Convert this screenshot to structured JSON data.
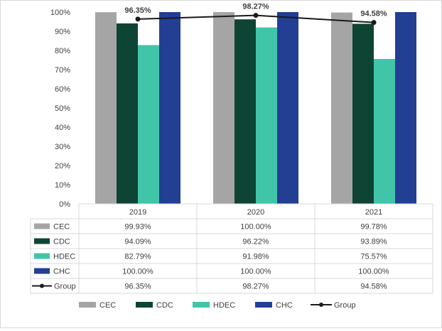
{
  "chart_data": {
    "type": "bar",
    "title": "",
    "xlabel": "",
    "ylabel": "",
    "ylim": [
      0,
      100
    ],
    "yticks": [
      "0%",
      "10%",
      "20%",
      "30%",
      "40%",
      "50%",
      "60%",
      "70%",
      "80%",
      "90%",
      "100%"
    ],
    "categories": [
      "2019",
      "2020",
      "2021"
    ],
    "series": [
      {
        "name": "CEC",
        "type": "bar",
        "color": "#a5a5a5",
        "values": [
          99.93,
          100.0,
          99.78
        ],
        "labels": [
          "99.93%",
          "100.00%",
          "99.78%"
        ]
      },
      {
        "name": "CDC",
        "type": "bar",
        "color": "#0e4433",
        "values": [
          94.09,
          96.22,
          93.89
        ],
        "labels": [
          "94.09%",
          "96.22%",
          "93.89%"
        ]
      },
      {
        "name": "HDEC",
        "type": "bar",
        "color": "#40c5a9",
        "values": [
          82.79,
          91.98,
          75.57
        ],
        "labels": [
          "82.79%",
          "91.98%",
          "75.57%"
        ]
      },
      {
        "name": "CHC",
        "type": "bar",
        "color": "#223f94",
        "values": [
          100.0,
          100.0,
          100.0
        ],
        "labels": [
          "100.00%",
          "100.00%",
          "100.00%"
        ]
      },
      {
        "name": "Group",
        "type": "line",
        "color": "#1a1a1a",
        "values": [
          96.35,
          98.27,
          94.58
        ],
        "labels": [
          "96.35%",
          "98.27%",
          "94.58%"
        ]
      }
    ],
    "data_labels": [
      "96.35%",
      "98.27%",
      "94.58%"
    ],
    "data_table": true,
    "grid": false,
    "legend_position": "bottom"
  }
}
